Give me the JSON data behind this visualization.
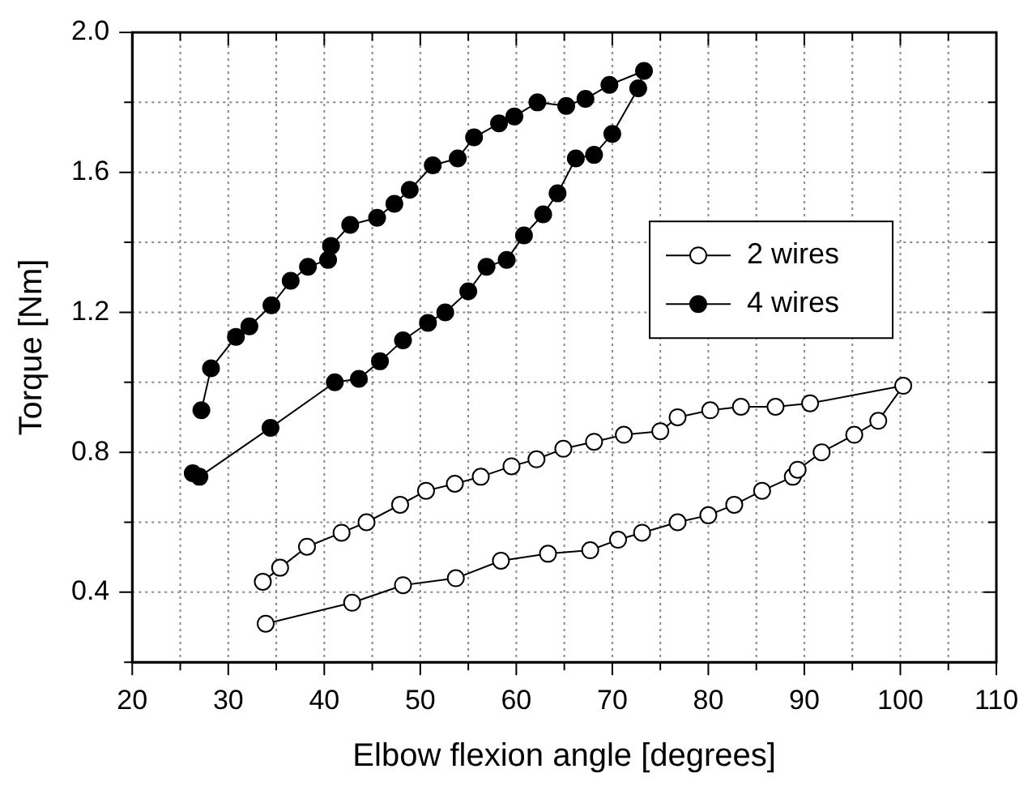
{
  "chart_data": {
    "type": "line",
    "xlabel": "Elbow flexion angle [degrees]",
    "ylabel": "Torque [Nm]",
    "xlim": [
      20,
      110
    ],
    "xticks": [
      20,
      {
        "value": 25,
        "label": null
      },
      30,
      {
        "value": 35,
        "label": null
      },
      40,
      {
        "value": 45,
        "label": null
      },
      50,
      {
        "value": 55,
        "label": null
      },
      60,
      {
        "value": 65,
        "label": null
      },
      70,
      {
        "value": 75,
        "label": null
      },
      80,
      {
        "value": 85,
        "label": null
      },
      90,
      {
        "value": 95,
        "label": null
      },
      100,
      {
        "value": 105,
        "label": null
      },
      110
    ],
    "ylim": [
      0.2,
      2.0
    ],
    "yticks": [
      {
        "value": 0.2,
        "label": null
      },
      0.4,
      {
        "value": 0.6,
        "label": null
      },
      0.8,
      {
        "value": 1.0,
        "label": null
      },
      1.2,
      {
        "value": 1.4,
        "label": null
      },
      1.6,
      {
        "value": 1.8,
        "label": null
      },
      {
        "value": 2.0,
        "label": "2.0"
      }
    ],
    "grid": true,
    "legend": "right",
    "marker": "circle",
    "line_style": "solid",
    "series": [
      {
        "name": "2 wires",
        "color": "#000000",
        "x": [
          33.9,
          42.9,
          48.2,
          53.7,
          58.4,
          63.3,
          67.7,
          70.6,
          73.1,
          76.8,
          80.0,
          82.7,
          85.6,
          88.8,
          89.3,
          91.8,
          95.2,
          97.7,
          100.3,
          90.6,
          87.0,
          83.4,
          80.2,
          76.8,
          75.0,
          71.2,
          68.1,
          64.9,
          62.1,
          59.5,
          56.3,
          53.6,
          50.6,
          47.9,
          44.4,
          41.8,
          38.2,
          35.4,
          33.6
        ],
        "values": [
          0.31,
          0.37,
          0.42,
          0.44,
          0.49,
          0.51,
          0.52,
          0.55,
          0.57,
          0.6,
          0.62,
          0.65,
          0.69,
          0.73,
          0.75,
          0.8,
          0.85,
          0.89,
          0.99,
          0.94,
          0.93,
          0.93,
          0.92,
          0.9,
          0.86,
          0.85,
          0.83,
          0.81,
          0.78,
          0.76,
          0.73,
          0.71,
          0.69,
          0.65,
          0.6,
          0.57,
          0.53,
          0.47,
          0.43
        ]
      },
      {
        "name": "4 wires",
        "color": "#000000",
        "x": [
          26.3,
          27.0,
          34.4,
          41.1,
          43.6,
          45.8,
          48.2,
          50.8,
          52.6,
          55.0,
          56.9,
          59.0,
          60.8,
          62.8,
          64.3,
          66.2,
          68.1,
          70.0,
          72.7,
          73.3,
          69.7,
          67.2,
          65.2,
          62.2,
          59.8,
          58.2,
          55.6,
          53.9,
          51.3,
          48.9,
          47.3,
          45.5,
          42.7,
          40.7,
          40.4,
          38.3,
          36.5,
          34.5,
          32.2,
          30.8,
          28.2,
          27.2
        ],
        "values": [
          0.74,
          0.73,
          0.87,
          1.0,
          1.01,
          1.06,
          1.12,
          1.17,
          1.2,
          1.26,
          1.33,
          1.35,
          1.42,
          1.48,
          1.54,
          1.64,
          1.65,
          1.71,
          1.84,
          1.89,
          1.85,
          1.81,
          1.79,
          1.8,
          1.76,
          1.74,
          1.7,
          1.64,
          1.62,
          1.55,
          1.51,
          1.47,
          1.45,
          1.39,
          1.35,
          1.33,
          1.29,
          1.22,
          1.16,
          1.13,
          1.04,
          0.92
        ]
      }
    ]
  }
}
